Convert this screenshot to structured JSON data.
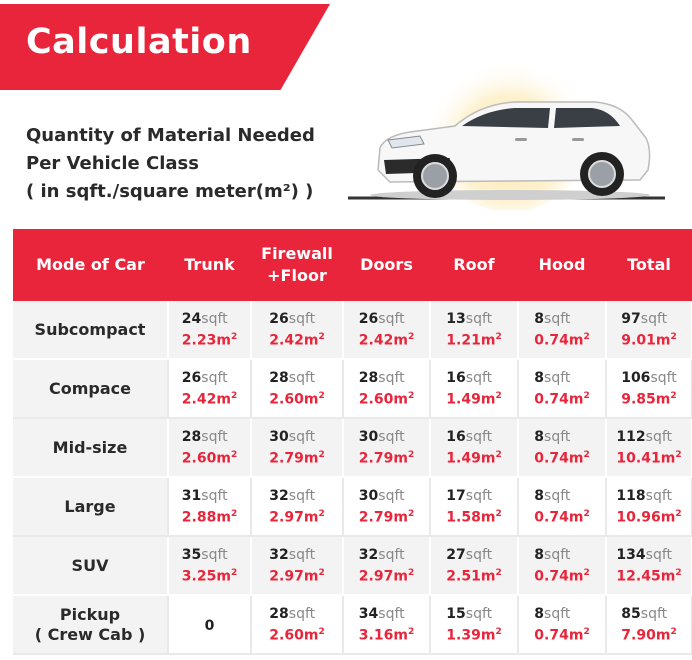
{
  "banner": {
    "title": "Calculation"
  },
  "subtitle": {
    "line1": "Quantity of Material Needed",
    "line2": "Per Vehicle Class",
    "line3": "( in sqft./square meter(m²) )"
  },
  "table": {
    "headers": [
      "Mode of Car",
      "Trunk",
      "Firewall +Floor",
      "Doors",
      "Roof",
      "Hood",
      "Total"
    ],
    "unit_sqft": "sqft",
    "unit_sqm": "m",
    "unit_sqm_sup": "2",
    "rows": [
      {
        "name": "Subcompact",
        "sub": "",
        "cells": [
          {
            "sqft": "24",
            "sqm": "2.23"
          },
          {
            "sqft": "26",
            "sqm": "2.42"
          },
          {
            "sqft": "26",
            "sqm": "2.42"
          },
          {
            "sqft": "13",
            "sqm": "1.21"
          },
          {
            "sqft": "8",
            "sqm": "0.74"
          },
          {
            "sqft": "97",
            "sqm": "9.01"
          }
        ]
      },
      {
        "name": "Compace",
        "sub": "",
        "cells": [
          {
            "sqft": "26",
            "sqm": "2.42"
          },
          {
            "sqft": "28",
            "sqm": "2.60"
          },
          {
            "sqft": "28",
            "sqm": "2.60"
          },
          {
            "sqft": "16",
            "sqm": "1.49"
          },
          {
            "sqft": "8",
            "sqm": "0.74"
          },
          {
            "sqft": "106",
            "sqm": "9.85"
          }
        ]
      },
      {
        "name": "Mid-size",
        "sub": "",
        "cells": [
          {
            "sqft": "28",
            "sqm": "2.60"
          },
          {
            "sqft": "30",
            "sqm": "2.79"
          },
          {
            "sqft": "30",
            "sqm": "2.79"
          },
          {
            "sqft": "16",
            "sqm": "1.49"
          },
          {
            "sqft": "8",
            "sqm": "0.74"
          },
          {
            "sqft": "112",
            "sqm": "10.41"
          }
        ]
      },
      {
        "name": "Large",
        "sub": "",
        "cells": [
          {
            "sqft": "31",
            "sqm": "2.88"
          },
          {
            "sqft": "32",
            "sqm": "2.97"
          },
          {
            "sqft": "30",
            "sqm": "2.79"
          },
          {
            "sqft": "17",
            "sqm": "1.58"
          },
          {
            "sqft": "8",
            "sqm": "0.74"
          },
          {
            "sqft": "118",
            "sqm": "10.96"
          }
        ]
      },
      {
        "name": "SUV",
        "sub": "",
        "cells": [
          {
            "sqft": "35",
            "sqm": "3.25"
          },
          {
            "sqft": "32",
            "sqm": "2.97"
          },
          {
            "sqft": "32",
            "sqm": "2.97"
          },
          {
            "sqft": "27",
            "sqm": "2.51"
          },
          {
            "sqft": "8",
            "sqm": "0.74"
          },
          {
            "sqft": "134",
            "sqm": "12.45"
          }
        ]
      },
      {
        "name": "Pickup",
        "sub": "( Crew Cab )",
        "cells": [
          {
            "sqft": "0",
            "sqm": "",
            "plain": true
          },
          {
            "sqft": "28",
            "sqm": "2.60"
          },
          {
            "sqft": "34",
            "sqm": "3.16"
          },
          {
            "sqft": "15",
            "sqm": "1.39"
          },
          {
            "sqft": "8",
            "sqm": "0.74"
          },
          {
            "sqft": "85",
            "sqm": "7.90"
          }
        ]
      }
    ]
  },
  "colors": {
    "accent": "#e8253b",
    "glow": "#fbe6a8"
  }
}
